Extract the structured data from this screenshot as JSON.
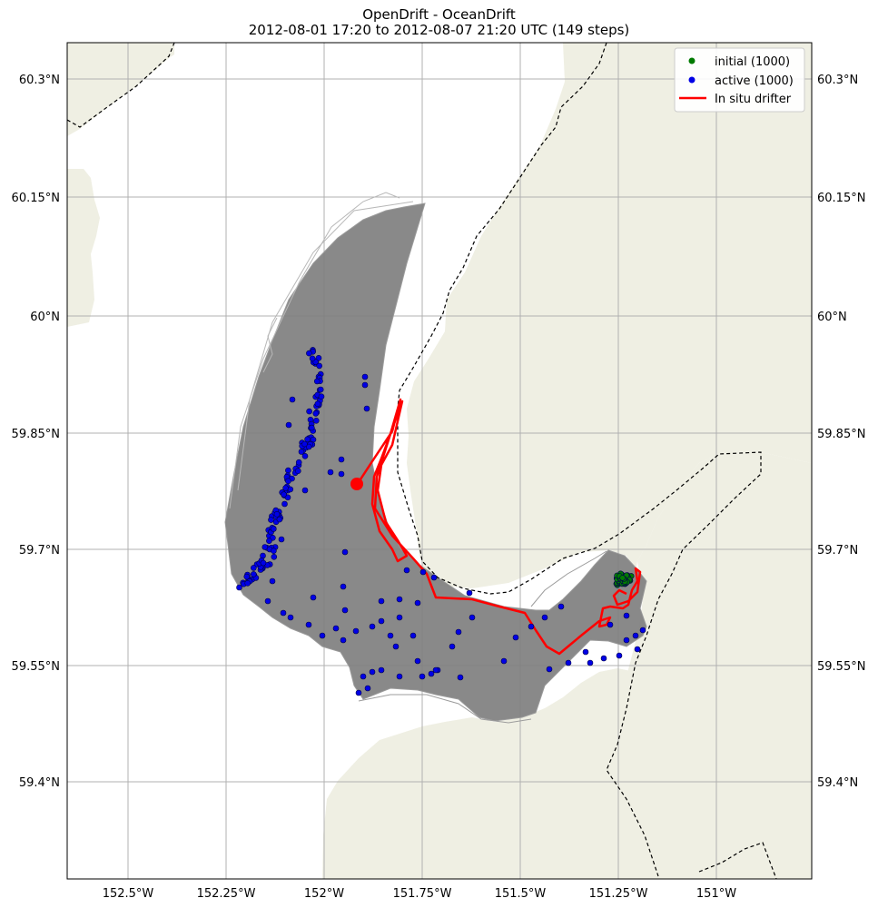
{
  "title": {
    "line1": "OpenDrift - OceanDrift",
    "line2": "2012-08-01 17:20 to 2012-08-07 21:20 UTC (149 steps)"
  },
  "axes": {
    "lat_ticks": [
      "60.3°N",
      "60.15°N",
      "60°N",
      "59.85°N",
      "59.7°N",
      "59.55°N",
      "59.4°N"
    ],
    "lon_ticks": [
      "152.5°W",
      "152.25°W",
      "152°W",
      "151.75°W",
      "151.5°W",
      "151.25°W",
      "151°W"
    ],
    "lat_range": [
      59.27,
      60.35
    ],
    "lon_range": [
      -152.65,
      -150.77
    ],
    "grid": true
  },
  "legend": {
    "placement": "top-right",
    "items": [
      {
        "label": "initial (1000)",
        "type": "marker",
        "color": "#007a00"
      },
      {
        "label": "active (1000)",
        "type": "marker",
        "color": "#0000e6"
      },
      {
        "label": "In situ drifter",
        "type": "line",
        "color": "#ff0000"
      }
    ]
  },
  "colors": {
    "land": "#efefe3",
    "sea": "#ffffff",
    "trajectories": "#7f7f7f",
    "initial": "#007a00",
    "active": "#0000e6",
    "drifter": "#ff0000",
    "grid": "#b0b0b0"
  }
}
